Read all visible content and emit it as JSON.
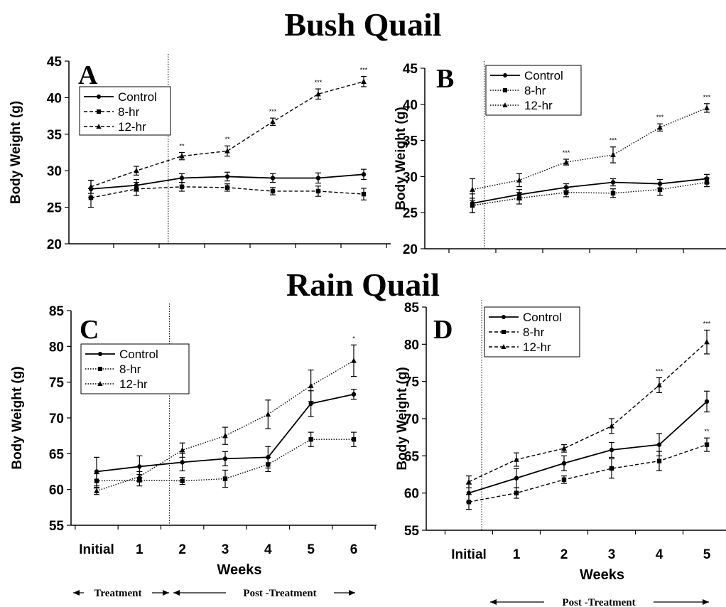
{
  "titles": {
    "top": "Bush Quail",
    "bottom": "Rain Quail"
  },
  "legend_labels": [
    "Control",
    "8-hr",
    "12-hr"
  ],
  "arrows": {
    "treatment": "Treatment",
    "post": "Post -Treatment"
  },
  "chart_data": [
    {
      "panel": "A",
      "type": "line",
      "ylabel": "Body Weight (g)",
      "xlabel": "",
      "ylim": [
        20,
        45
      ],
      "yticks": [
        20,
        25,
        30,
        35,
        40,
        45
      ],
      "categories": [],
      "x": [
        0,
        1,
        2,
        3,
        4,
        5,
        6
      ],
      "divider_x": 1.7,
      "legend_position": "upper-left",
      "series": [
        {
          "name": "Control",
          "style": "solid",
          "marker": "circle",
          "values": [
            27.5,
            28.0,
            29.0,
            29.2,
            29.0,
            29.0,
            29.5
          ],
          "errors": [
            1.2,
            0.8,
            0.6,
            0.6,
            0.6,
            0.7,
            0.7
          ]
        },
        {
          "name": "8-hr",
          "style": "dashed",
          "marker": "square",
          "values": [
            26.3,
            27.5,
            27.8,
            27.7,
            27.2,
            27.2,
            26.8
          ],
          "errors": [
            1.3,
            0.9,
            0.6,
            0.5,
            0.5,
            0.7,
            0.8
          ]
        },
        {
          "name": "12-hr",
          "style": "dashed",
          "marker": "triangle",
          "values": [
            27.8,
            30.0,
            32.0,
            32.7,
            36.7,
            40.5,
            42.2
          ],
          "errors": [
            0.9,
            0.6,
            0.5,
            0.7,
            0.5,
            0.7,
            0.7
          ],
          "significance": [
            "",
            "",
            "**",
            "**",
            "***",
            "***",
            "***"
          ]
        }
      ]
    },
    {
      "panel": "B",
      "type": "line",
      "ylabel": "Body Weight (g)",
      "xlabel": "",
      "ylim": [
        20,
        45
      ],
      "yticks": [
        20,
        25,
        30,
        35,
        40,
        45
      ],
      "categories": [],
      "x": [
        0,
        1,
        2,
        3,
        4,
        5
      ],
      "divider_x": 0.25,
      "legend_position": "upper-left",
      "series": [
        {
          "name": "Control",
          "style": "solid",
          "marker": "circle",
          "values": [
            26.3,
            27.5,
            28.5,
            29.2,
            29.0,
            29.7
          ],
          "errors": [
            1.3,
            0.7,
            0.5,
            0.5,
            0.6,
            0.6
          ]
        },
        {
          "name": "8-hr",
          "style": "dotted",
          "marker": "square",
          "values": [
            26.0,
            27.0,
            27.8,
            27.7,
            28.2,
            29.2
          ],
          "errors": [
            1.0,
            0.8,
            0.6,
            0.6,
            0.8,
            0.6
          ]
        },
        {
          "name": "12-hr",
          "style": "dotted",
          "marker": "triangle",
          "values": [
            28.2,
            29.5,
            32.0,
            33.0,
            36.8,
            39.5
          ],
          "errors": [
            1.5,
            0.9,
            0.4,
            1.1,
            0.5,
            0.6
          ],
          "significance": [
            "",
            "",
            "***",
            "***",
            "***",
            "***"
          ]
        }
      ]
    },
    {
      "panel": "C",
      "type": "line",
      "ylabel": "Body Weight (g)",
      "xlabel": "Weeks",
      "ylim": [
        55,
        85
      ],
      "yticks": [
        55,
        60,
        65,
        70,
        75,
        80,
        85
      ],
      "categories": [
        "Initial",
        "1",
        "2",
        "3",
        "4",
        "5",
        "6"
      ],
      "x": [
        0,
        1,
        2,
        3,
        4,
        5,
        6
      ],
      "divider_x": 1.7,
      "legend_position": "center-left",
      "series": [
        {
          "name": "Control",
          "style": "solid",
          "marker": "circle",
          "values": [
            62.5,
            63.2,
            63.8,
            64.3,
            64.5,
            72.0,
            73.3
          ],
          "errors": [
            2.0,
            1.5,
            1.2,
            1.0,
            1.5,
            1.8,
            0.7
          ]
        },
        {
          "name": "8-hr",
          "style": "dotted",
          "marker": "square",
          "values": [
            61.2,
            61.3,
            61.2,
            61.5,
            63.5,
            67.0,
            67.0
          ],
          "errors": [
            1.0,
            0.8,
            0.5,
            1.2,
            1.0,
            1.0,
            1.0
          ]
        },
        {
          "name": "12-hr",
          "style": "dotted",
          "marker": "triangle",
          "values": [
            59.8,
            61.8,
            65.5,
            67.5,
            70.5,
            74.5,
            78.0
          ],
          "errors": [
            0.5,
            0.7,
            1.0,
            1.2,
            2.0,
            2.2,
            2.2
          ],
          "significance": [
            "",
            "",
            "",
            "",
            "",
            "",
            "*"
          ]
        }
      ]
    },
    {
      "panel": "D",
      "type": "line",
      "ylabel": "Body Weight (g)",
      "xlabel": "Weeks",
      "ylim": [
        55,
        85
      ],
      "yticks": [
        55,
        60,
        65,
        70,
        75,
        80,
        85
      ],
      "categories": [
        "Initial",
        "1",
        "2",
        "3",
        "4",
        "5"
      ],
      "x": [
        0,
        1,
        2,
        3,
        4,
        5
      ],
      "divider_x": 0.27,
      "legend_position": "upper-left",
      "series": [
        {
          "name": "Control",
          "style": "solid",
          "marker": "circle",
          "values": [
            60.0,
            62.0,
            64.0,
            65.8,
            66.5,
            72.3
          ],
          "errors": [
            1.2,
            1.3,
            1.0,
            1.0,
            1.5,
            1.4
          ],
          "significance": [
            "",
            "",
            "",
            "",
            "",
            ""
          ]
        },
        {
          "name": "8-hr",
          "style": "dashed",
          "marker": "square",
          "values": [
            58.8,
            60.0,
            61.8,
            63.3,
            64.3,
            66.5
          ],
          "errors": [
            1.0,
            0.7,
            0.5,
            1.3,
            1.3,
            0.9
          ],
          "significance": [
            "",
            "",
            "",
            "",
            "",
            "**"
          ]
        },
        {
          "name": "12-hr",
          "style": "dashed",
          "marker": "triangle",
          "values": [
            61.5,
            64.5,
            66.0,
            69.0,
            74.5,
            80.3
          ],
          "errors": [
            0.8,
            0.9,
            0.5,
            1.0,
            1.0,
            1.6
          ],
          "significance": [
            "",
            "",
            "",
            "",
            "***",
            "***"
          ]
        }
      ]
    }
  ]
}
